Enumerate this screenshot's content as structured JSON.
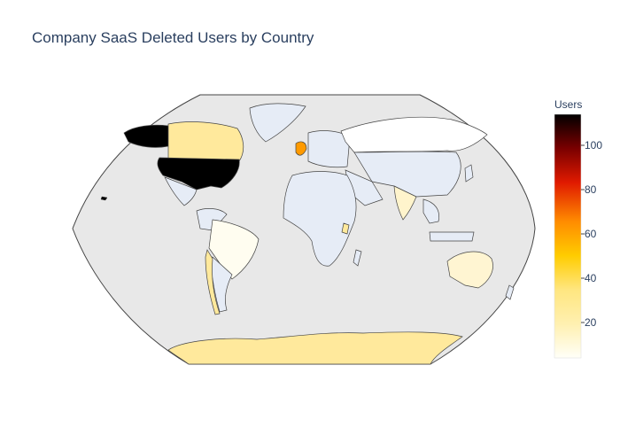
{
  "chart_data": {
    "type": "choropleth",
    "title": "Company SaaS Deleted Users by Country",
    "projection": "robinson",
    "colorbar": {
      "title": "Users",
      "ticks": [
        20,
        40,
        60,
        80,
        100
      ],
      "range": [
        4,
        114
      ],
      "colorscale": [
        "#fffff8",
        "#ffe680",
        "#ffcc00",
        "#ff8c00",
        "#e01a00",
        "#7a0000",
        "#000000"
      ]
    },
    "locations": [
      {
        "country": "United States",
        "value": 114
      },
      {
        "country": "Alaska (US)",
        "value": 114
      },
      {
        "country": "United Kingdom",
        "value": 52
      },
      {
        "country": "Canada",
        "value": 22
      },
      {
        "country": "Antarctica",
        "value": 22
      },
      {
        "country": "Chile",
        "value": 20
      },
      {
        "country": "Uganda",
        "value": 22
      },
      {
        "country": "India",
        "value": 12
      },
      {
        "country": "Australia",
        "value": 10
      },
      {
        "country": "Brazil",
        "value": 5
      },
      {
        "country": "Russia",
        "value": 4
      }
    ]
  }
}
